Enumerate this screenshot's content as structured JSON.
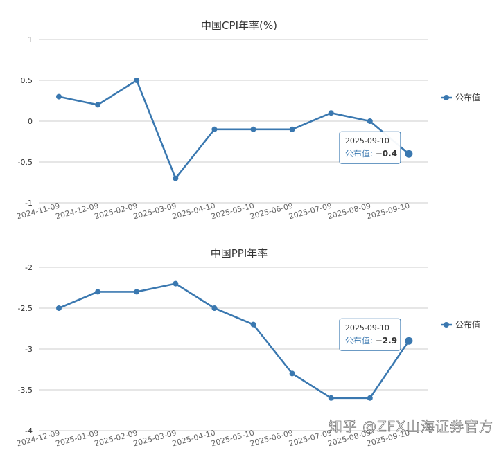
{
  "accent_color": "#3a78b0",
  "watermark": "知乎 @ZFX山海证券官方",
  "chart_data": [
    {
      "type": "line",
      "title": "中国CPI年率(%)",
      "ylim": [
        -1,
        1
      ],
      "y_ticks": [
        "1",
        "0.5",
        "0",
        "-0.5",
        "-1"
      ],
      "y_tick_values": [
        1,
        0.5,
        0,
        -0.5,
        -1
      ],
      "categories": [
        "2024-11-09",
        "2024-12-09",
        "2025-02-09",
        "2025-03-09",
        "2025-04-10",
        "2025-05-10",
        "2025-06-09",
        "2025-07-09",
        "2025-08-09",
        "2025-09-10"
      ],
      "series": [
        {
          "name": "公布值",
          "values": [
            0.3,
            0.2,
            0.5,
            -0.7,
            -0.1,
            -0.1,
            -0.1,
            0.1,
            0.0,
            -0.4
          ]
        }
      ],
      "legend": {
        "label": "公布值",
        "position": "right"
      },
      "tooltip": {
        "date": "2025-09-10",
        "label": "公布值:",
        "value": "−0.4"
      },
      "grid": true
    },
    {
      "type": "line",
      "title": "中国PPI年率",
      "ylim": [
        -4,
        -2
      ],
      "y_ticks": [
        "-2",
        "-2.5",
        "-3",
        "-3.5",
        "-4"
      ],
      "y_tick_values": [
        -2,
        -2.5,
        -3,
        -3.5,
        -4
      ],
      "categories": [
        "2024-12-09",
        "2025-01-09",
        "2025-02-09",
        "2025-03-09",
        "2025-04-10",
        "2025-05-10",
        "2025-06-09",
        "2025-07-09",
        "2025-08-09",
        "2025-09-10"
      ],
      "series": [
        {
          "name": "公布值",
          "values": [
            -2.5,
            -2.3,
            -2.3,
            -2.2,
            -2.5,
            -2.7,
            -3.3,
            -3.6,
            -3.6,
            -2.9
          ]
        }
      ],
      "legend": {
        "label": "公布值",
        "position": "right"
      },
      "tooltip": {
        "date": "2025-09-10",
        "label": "公布值:",
        "value": "−2.9"
      },
      "grid": true
    }
  ]
}
